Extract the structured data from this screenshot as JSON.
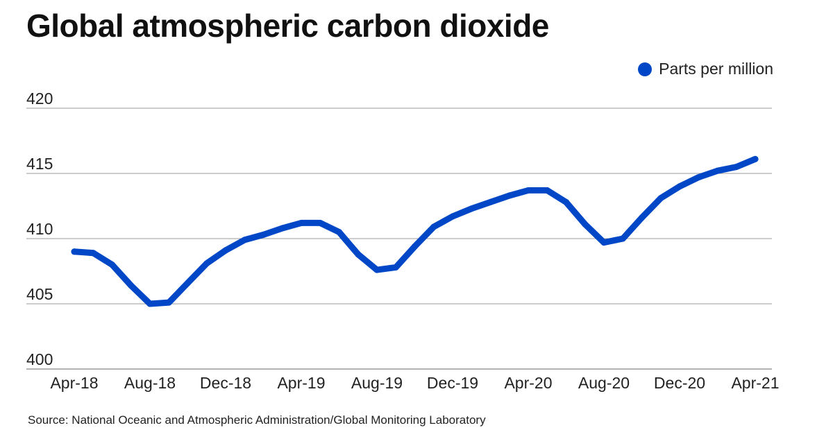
{
  "title": "Global atmospheric carbon dioxide",
  "source": "Source: National Oceanic and Atmospheric Administration/Global Monitoring Laboratory",
  "colors": {
    "series": "#0047c8",
    "grid": "#9a9a9a",
    "text": "#111111"
  },
  "chart_data": {
    "type": "line",
    "title": "Global atmospheric carbon dioxide",
    "xlabel": "",
    "ylabel": "",
    "ylim": [
      400,
      420
    ],
    "yticks": [
      400,
      405,
      410,
      415,
      420
    ],
    "grid": true,
    "legend_position": "top-right",
    "x_tick_labels": [
      "Apr-18",
      "Aug-18",
      "Dec-18",
      "Apr-19",
      "Aug-19",
      "Dec-19",
      "Apr-20",
      "Aug-20",
      "Dec-20",
      "Apr-21"
    ],
    "x": [
      "Apr-18",
      "May-18",
      "Jun-18",
      "Jul-18",
      "Aug-18",
      "Sep-18",
      "Oct-18",
      "Nov-18",
      "Dec-18",
      "Jan-19",
      "Feb-19",
      "Mar-19",
      "Apr-19",
      "May-19",
      "Jun-19",
      "Jul-19",
      "Aug-19",
      "Sep-19",
      "Oct-19",
      "Nov-19",
      "Dec-19",
      "Jan-20",
      "Feb-20",
      "Mar-20",
      "Apr-20",
      "May-20",
      "Jun-20",
      "Jul-20",
      "Aug-20",
      "Sep-20",
      "Oct-20",
      "Nov-20",
      "Dec-20",
      "Jan-21",
      "Feb-21",
      "Mar-21",
      "Apr-21"
    ],
    "series": [
      {
        "name": "Parts per million",
        "values": [
          409.0,
          408.9,
          408.0,
          406.4,
          405.0,
          405.1,
          406.6,
          408.1,
          409.1,
          409.9,
          410.3,
          410.8,
          411.2,
          411.2,
          410.5,
          408.8,
          407.6,
          407.8,
          409.4,
          410.9,
          411.7,
          412.3,
          412.8,
          413.3,
          413.7,
          413.7,
          412.8,
          411.1,
          409.7,
          410.0,
          411.6,
          413.1,
          414.0,
          414.7,
          415.2,
          415.5,
          416.1
        ]
      }
    ]
  }
}
